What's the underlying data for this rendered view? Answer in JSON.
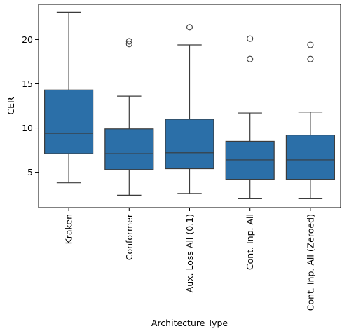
{
  "chart_data": {
    "type": "box",
    "xlabel": "Architecture Type",
    "ylabel": "CER",
    "ylim": [
      1,
      24
    ],
    "yticks": [
      5,
      10,
      15,
      20
    ],
    "grid": false,
    "box_color": "#2b6fa8",
    "categories": [
      "Kraken",
      "Conformer",
      "Aux. Loss All (0.1)",
      "Cont. Inp. All",
      "Cont. Inp. All (Zeroed)"
    ],
    "boxes": [
      {
        "category": "Kraken",
        "whisker_low": 3.8,
        "q1": 7.1,
        "median": 9.4,
        "q3": 14.3,
        "whisker_high": 23.1,
        "outliers": []
      },
      {
        "category": "Conformer",
        "whisker_low": 2.4,
        "q1": 5.3,
        "median": 7.1,
        "q3": 9.9,
        "whisker_high": 13.6,
        "outliers": [
          19.5,
          19.8
        ]
      },
      {
        "category": "Aux. Loss All (0.1)",
        "whisker_low": 2.6,
        "q1": 5.4,
        "median": 7.2,
        "q3": 11.0,
        "whisker_high": 19.4,
        "outliers": [
          21.4
        ]
      },
      {
        "category": "Cont. Inp. All",
        "whisker_low": 2.0,
        "q1": 4.2,
        "median": 6.4,
        "q3": 8.5,
        "whisker_high": 11.7,
        "outliers": [
          17.8,
          20.1
        ]
      },
      {
        "category": "Cont. Inp. All (Zeroed)",
        "whisker_low": 2.0,
        "q1": 4.2,
        "median": 6.4,
        "q3": 9.2,
        "whisker_high": 11.8,
        "outliers": [
          17.8,
          19.4
        ]
      }
    ]
  }
}
